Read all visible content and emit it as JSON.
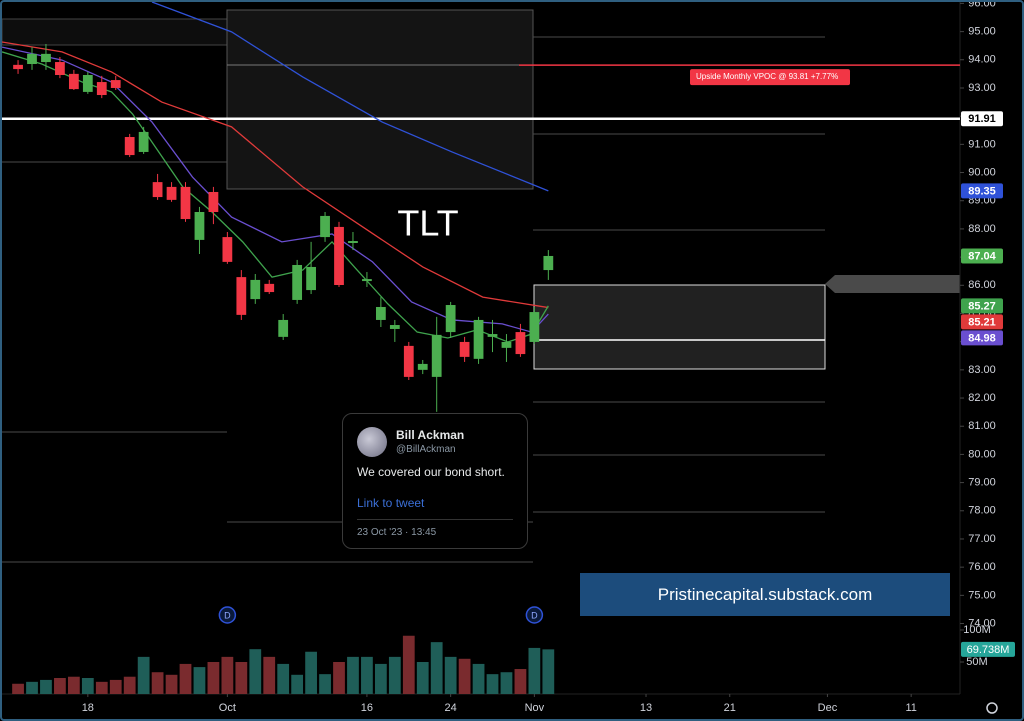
{
  "chart_data": {
    "type": "candlestick",
    "title": "TLT",
    "up_color": "#4caf50",
    "down_color": "#f23645",
    "volume_up_color": "#1f5e58",
    "volume_down_color": "#7a2b2e",
    "grid": false,
    "xlim": [
      -1.15,
      67.5
    ],
    "ylim": [
      71.5,
      96.05
    ],
    "y2lim": [
      0,
      1081
    ],
    "xticks": [
      {
        "value": 5,
        "label": "18"
      },
      {
        "value": 15,
        "label": "Oct"
      },
      {
        "value": 25,
        "label": "16"
      },
      {
        "value": 31,
        "label": "24"
      },
      {
        "value": 37,
        "label": "Nov"
      },
      {
        "value": 45,
        "label": "13"
      },
      {
        "value": 51,
        "label": "21"
      },
      {
        "value": 58,
        "label": "Dec"
      },
      {
        "value": 64,
        "label": "11"
      }
    ],
    "yticks": [
      {
        "value": 96,
        "label": "96.00"
      },
      {
        "value": 95,
        "label": "95.00"
      },
      {
        "value": 94,
        "label": "94.00"
      },
      {
        "value": 93,
        "label": "93.00"
      },
      {
        "value": 92,
        "label": "92.00"
      },
      {
        "value": 91,
        "label": "91.00"
      },
      {
        "value": 90,
        "label": "90.00"
      },
      {
        "value": 89,
        "label": "89.00"
      },
      {
        "value": 88,
        "label": "88.00"
      },
      {
        "value": 87,
        "label": "87.00"
      },
      {
        "value": 86,
        "label": "86.00"
      },
      {
        "value": 85,
        "label": "85.00"
      },
      {
        "value": 84,
        "label": "84.00"
      },
      {
        "value": 83,
        "label": "83.00"
      },
      {
        "value": 82,
        "label": "82.00"
      },
      {
        "value": 81,
        "label": "81.00"
      },
      {
        "value": 80,
        "label": "80.00"
      },
      {
        "value": 79,
        "label": "79.00"
      },
      {
        "value": 78,
        "label": "78.00"
      },
      {
        "value": 77,
        "label": "77.00"
      },
      {
        "value": 76,
        "label": "76.00"
      },
      {
        "value": 75,
        "label": "75.00"
      },
      {
        "value": 74,
        "label": "74.00"
      }
    ],
    "y2ticks": [
      {
        "value": 100,
        "label": "100M"
      },
      {
        "value": 50,
        "label": "50M"
      }
    ],
    "x": [
      0,
      1,
      2,
      3,
      4,
      5,
      6,
      7,
      8,
      9,
      10,
      11,
      12,
      13,
      14,
      15,
      16,
      17,
      18,
      19,
      20,
      21,
      22,
      23,
      24,
      25,
      26,
      27,
      28,
      29,
      30,
      31,
      32,
      33,
      34,
      35,
      36,
      37,
      38
    ],
    "open": [
      93.82,
      93.85,
      93.92,
      93.92,
      93.5,
      92.86,
      93.21,
      93.28,
      91.26,
      90.73,
      89.66,
      89.49,
      89.49,
      87.61,
      89.31,
      87.71,
      86.29,
      85.51,
      86.05,
      84.17,
      85.48,
      85.83,
      87.71,
      88.07,
      87.5,
      86.15,
      84.77,
      84.45,
      83.85,
      83.0,
      82.75,
      84.34,
      83.99,
      83.39,
      84.17,
      83.78,
      84.34,
      83.99,
      86.54
    ],
    "high": [
      93.99,
      94.45,
      94.56,
      94.1,
      93.64,
      93.57,
      93.43,
      93.43,
      91.37,
      91.62,
      89.95,
      89.66,
      89.66,
      88.78,
      89.49,
      87.89,
      86.54,
      86.4,
      86.19,
      84.98,
      86.9,
      87.54,
      88.6,
      88.25,
      87.89,
      86.47,
      85.58,
      84.77,
      83.99,
      83.35,
      84.88,
      85.41,
      84.17,
      84.88,
      84.77,
      84.27,
      84.63,
      85.23,
      87.25
    ],
    "low": [
      93.5,
      93.64,
      93.64,
      93.35,
      92.93,
      92.79,
      92.64,
      92.93,
      90.55,
      90.66,
      89.03,
      88.96,
      88.25,
      87.11,
      88.17,
      86.76,
      84.77,
      85.34,
      85.69,
      84.06,
      85.34,
      85.69,
      87.54,
      85.94,
      87.25,
      85.94,
      84.52,
      83.99,
      82.64,
      82.85,
      81.51,
      84.13,
      83.28,
      83.21,
      83.63,
      83.28,
      83.46,
      83.92,
      86.19
    ],
    "close": [
      93.67,
      94.21,
      94.21,
      93.46,
      92.96,
      93.46,
      92.75,
      93.0,
      90.62,
      91.44,
      89.13,
      89.03,
      88.35,
      88.6,
      88.6,
      86.83,
      84.95,
      86.19,
      85.76,
      84.77,
      86.72,
      86.65,
      88.46,
      86.01,
      87.57,
      86.22,
      85.23,
      84.59,
      82.75,
      83.21,
      84.24,
      85.3,
      83.46,
      84.77,
      84.27,
      83.99,
      83.56,
      85.05,
      87.04
    ],
    "last_price_label": "87.04",
    "volume": [
      16,
      19,
      22,
      25,
      27,
      25,
      19,
      22,
      27,
      58,
      34,
      30,
      47,
      42,
      50,
      58,
      50,
      70,
      58,
      47,
      30,
      66,
      31,
      50,
      58,
      58,
      47,
      58,
      91,
      50,
      81,
      58,
      55,
      47,
      31,
      34,
      39,
      72,
      69.738
    ],
    "volume_label": "69.738M",
    "series": [
      {
        "color": "#2f52d8",
        "label": "89.35",
        "x": [
          9.6,
          15.3,
          20.4,
          26.1,
          31.1,
          38
        ],
        "values": [
          96.05,
          94.99,
          93.39,
          91.79,
          90.73,
          89.35
        ]
      },
      {
        "color": "#e03a3a",
        "label": "85.21",
        "x": [
          -1.15,
          3.15,
          6.7,
          10.3,
          15.3,
          20.4,
          24.7,
          29.0,
          33.3,
          38
        ],
        "values": [
          94.63,
          94.28,
          93.57,
          92.5,
          91.62,
          89.49,
          88.07,
          86.65,
          85.58,
          85.21
        ]
      },
      {
        "color": "#6a4fd0",
        "label": "84.98",
        "x": [
          -1.15,
          3.15,
          6.7,
          9.6,
          12.5,
          15.3,
          18.9,
          22.5,
          25.4,
          28.2,
          31.1,
          34.7,
          36.8,
          38
        ],
        "values": [
          94.45,
          93.99,
          93.21,
          91.79,
          89.84,
          88.42,
          87.54,
          87.82,
          86.83,
          85.41,
          84.77,
          84.63,
          84.34,
          84.98
        ]
      },
      {
        "color": "#3fa34d",
        "label": "85.27",
        "x": [
          -1.15,
          1.7,
          4.6,
          6.7,
          8.2,
          9.6,
          11.8,
          13.9,
          16.1,
          18.2,
          20.4,
          22.5,
          24.3,
          26.5,
          28.6,
          30.8,
          32.9,
          35.1,
          36.8,
          38
        ],
        "values": [
          94.28,
          93.85,
          93.21,
          92.86,
          92.08,
          91.08,
          89.49,
          88.6,
          87.54,
          86.29,
          86.54,
          87.54,
          86.54,
          85.34,
          84.34,
          84.13,
          84.42,
          83.99,
          84.27,
          85.27
        ]
      }
    ],
    "levels": [
      {
        "value": 91.91,
        "label": "91.91",
        "color": "#ffffff"
      }
    ],
    "annotation": {
      "text": "Upside Monthly VPOC @ 93.81 +7.77%",
      "value": 93.81,
      "color": "#f23645"
    },
    "dividends": [
      {
        "x": 15,
        "label": "D"
      },
      {
        "x": 37,
        "label": "D"
      }
    ]
  },
  "tweet": {
    "name": "Bill Ackman",
    "handle": "@BillAckman",
    "text": "We covered our bond short.",
    "link": "Link to tweet",
    "date": "23 Oct '23 · 13:45"
  },
  "banner": "Pristinecapital.substack.com"
}
